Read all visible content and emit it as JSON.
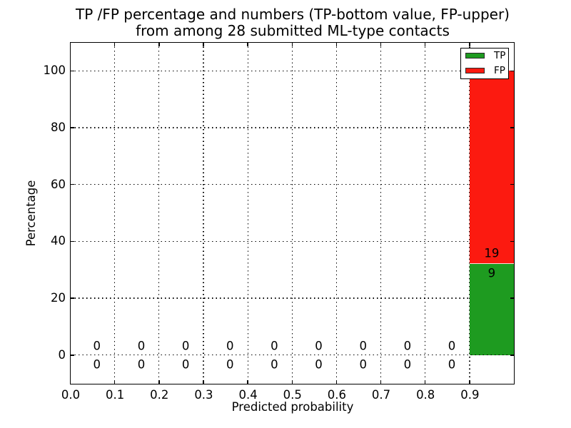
{
  "title": {
    "line1": "TP /FP percentage and numbers (TP-bottom value, FP-upper)",
    "line2": "from among 28 submitted ML-type contacts"
  },
  "axes": {
    "x": {
      "label": "Predicted probability"
    },
    "y": {
      "label": "Percentage"
    }
  },
  "legend": {
    "position": "upper right",
    "items": [
      {
        "label": "TP",
        "color": "#1e9b20"
      },
      {
        "label": "FP",
        "color": "#fc1a10"
      }
    ]
  },
  "colors": {
    "tp_green": "#1e9b20",
    "fp_red": "#fc1a10",
    "axis": "#000000",
    "background": "#ffffff"
  },
  "chart_data": {
    "type": "bar",
    "stacked": true,
    "title": "TP /FP percentage and numbers (TP-bottom value, FP-upper) from among 28 submitted ML-type contacts",
    "xlabel": "Predicted probability",
    "ylabel": "Percentage",
    "categories": [
      0.0,
      0.1,
      0.2,
      0.3,
      0.4,
      0.5,
      0.6,
      0.7,
      0.8,
      0.9
    ],
    "bin_width": 0.1,
    "total_contacts": 28,
    "series": [
      {
        "name": "TP",
        "color": "#1e9b20",
        "counts": [
          0,
          0,
          0,
          0,
          0,
          0,
          0,
          0,
          0,
          9
        ],
        "percentages": [
          0,
          0,
          0,
          0,
          0,
          0,
          0,
          0,
          0,
          32.14
        ]
      },
      {
        "name": "FP",
        "color": "#fc1a10",
        "counts": [
          0,
          0,
          0,
          0,
          0,
          0,
          0,
          0,
          0,
          19
        ],
        "percentages": [
          0,
          0,
          0,
          0,
          0,
          0,
          0,
          0,
          0,
          67.86
        ]
      }
    ],
    "x_ticks": [
      "0.0",
      "0.1",
      "0.2",
      "0.3",
      "0.4",
      "0.5",
      "0.6",
      "0.7",
      "0.8",
      "0.9"
    ],
    "y_ticks": [
      "0",
      "20",
      "40",
      "60",
      "80",
      "100"
    ],
    "xlim": [
      0,
      1.0
    ],
    "ylim": [
      -10.1,
      110
    ],
    "grid": true,
    "grid_style": "dotted",
    "legend_position": "upper right"
  }
}
